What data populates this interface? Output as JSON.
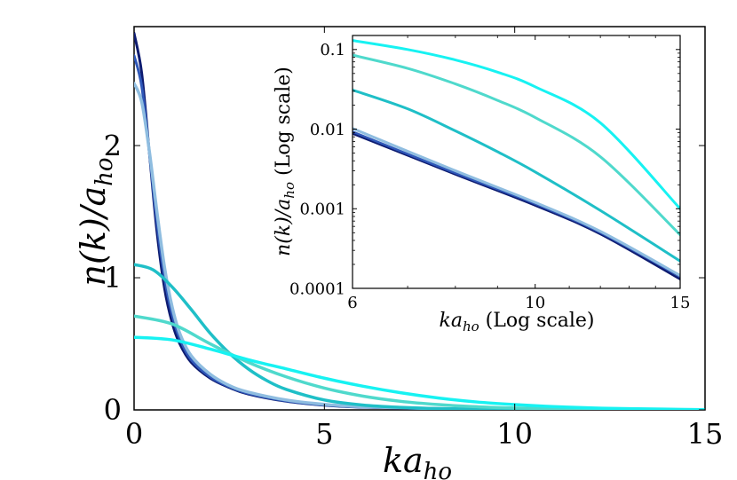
{
  "chart_data": [
    {
      "id": "main",
      "type": "line",
      "xlabel": "ka",
      "xlabel_sub": "ho",
      "ylabel_prefix": "n(k)/a",
      "ylabel_sub": "ho",
      "xlim": [
        0,
        15
      ],
      "ylim": [
        0,
        2.9
      ],
      "xticks": [
        0,
        5,
        10,
        15
      ],
      "xtick_labels": [
        "0",
        "5",
        "10",
        "15"
      ],
      "yticks": [
        0,
        1,
        2
      ],
      "ytick_labels": [
        "0",
        "1",
        "2"
      ],
      "grid": false,
      "series": [
        {
          "color": "#0d1b70",
          "width": 3,
          "x": [
            0,
            0.2,
            0.4,
            0.6,
            0.8,
            1.0,
            1.2,
            1.5,
            2.0,
            2.5,
            3.0,
            4.0,
            5.0,
            6.0,
            8.0,
            10.0,
            15.0
          ],
          "y": [
            2.85,
            2.55,
            1.95,
            1.35,
            0.92,
            0.66,
            0.5,
            0.36,
            0.24,
            0.17,
            0.12,
            0.065,
            0.035,
            0.02,
            0.008,
            0.003,
            0.0005
          ]
        },
        {
          "color": "#2e57b8",
          "width": 3,
          "x": [
            0,
            0.2,
            0.4,
            0.6,
            0.8,
            1.0,
            1.2,
            1.5,
            2.0,
            2.5,
            3.0,
            4.0,
            5.0,
            6.0,
            8.0,
            10.0,
            15.0
          ],
          "y": [
            2.68,
            2.45,
            1.95,
            1.42,
            1.0,
            0.72,
            0.54,
            0.38,
            0.25,
            0.175,
            0.125,
            0.068,
            0.037,
            0.021,
            0.009,
            0.0035,
            0.0006
          ]
        },
        {
          "color": "#8fbde0",
          "width": 3.5,
          "x": [
            0,
            0.2,
            0.4,
            0.6,
            0.8,
            1.0,
            1.2,
            1.5,
            2.0,
            2.5,
            3.0,
            4.0,
            5.0,
            6.0,
            8.0,
            10.0,
            15.0
          ],
          "y": [
            2.47,
            2.33,
            1.96,
            1.5,
            1.08,
            0.78,
            0.58,
            0.41,
            0.27,
            0.185,
            0.135,
            0.075,
            0.042,
            0.024,
            0.01,
            0.004,
            0.0007
          ]
        },
        {
          "color": "#1fbfc7",
          "width": 3.5,
          "x": [
            0,
            0.5,
            1.0,
            1.5,
            2.0,
            2.5,
            3.0,
            3.5,
            4.0,
            5.0,
            6.0,
            7.0,
            8.0,
            10.0,
            12.0,
            15.0
          ],
          "y": [
            1.1,
            1.06,
            0.93,
            0.76,
            0.58,
            0.43,
            0.31,
            0.22,
            0.155,
            0.075,
            0.037,
            0.019,
            0.01,
            0.003,
            0.001,
            0.0003
          ]
        },
        {
          "color": "#4fd9cc",
          "width": 3.5,
          "x": [
            0,
            1.0,
            2.0,
            3.0,
            4.0,
            5.0,
            6.0,
            7.0,
            8.0,
            9.0,
            10.0,
            12.0,
            15.0
          ],
          "y": [
            0.71,
            0.65,
            0.5,
            0.36,
            0.25,
            0.165,
            0.105,
            0.065,
            0.04,
            0.024,
            0.014,
            0.005,
            0.001
          ]
        },
        {
          "color": "#17f2f2",
          "width": 3.5,
          "x": [
            0,
            1.0,
            2.0,
            3.0,
            4.0,
            5.0,
            6.0,
            7.0,
            8.0,
            9.0,
            10.0,
            11.0,
            12.0,
            13.0,
            15.0
          ],
          "y": [
            0.55,
            0.53,
            0.46,
            0.38,
            0.31,
            0.24,
            0.18,
            0.13,
            0.09,
            0.06,
            0.04,
            0.025,
            0.015,
            0.009,
            0.002
          ]
        }
      ]
    },
    {
      "id": "inset",
      "type": "line",
      "xlabel": "ka",
      "xlabel_sub": "ho",
      "xlabel_suffix": " (Log scale)",
      "ylabel_prefix": "n(k)/a",
      "ylabel_sub": "ho",
      "ylabel_suffix": " (Log scale)",
      "xscale": "log",
      "yscale": "log",
      "xlim": [
        6,
        15
      ],
      "ylim": [
        0.0001,
        0.15
      ],
      "xticks": [
        6,
        10,
        15
      ],
      "xtick_labels": [
        "6",
        "10",
        "15"
      ],
      "yticks": [
        0.1,
        0.01,
        0.001,
        0.0001
      ],
      "ytick_labels": [
        "0.1",
        "0.01",
        "0.001",
        "0.0001"
      ],
      "grid": false,
      "series": [
        {
          "color": "#0d1b70",
          "width": 2.5,
          "x": [
            6,
            8,
            10,
            12,
            15
          ],
          "y": [
            0.0088,
            0.0027,
            0.0011,
            0.00048,
            0.00013
          ]
        },
        {
          "color": "#2e57b8",
          "width": 2.5,
          "x": [
            6,
            8,
            10,
            12,
            15
          ],
          "y": [
            0.0093,
            0.0028,
            0.00115,
            0.0005,
            0.00014
          ]
        },
        {
          "color": "#8fbde0",
          "width": 3,
          "x": [
            6,
            8,
            10,
            12,
            15
          ],
          "y": [
            0.0102,
            0.003,
            0.0012,
            0.00052,
            0.000145
          ]
        },
        {
          "color": "#1fbfc7",
          "width": 3,
          "x": [
            6,
            7,
            8,
            9,
            10,
            12,
            15
          ],
          "y": [
            0.031,
            0.018,
            0.0095,
            0.0052,
            0.0029,
            0.00095,
            0.00022
          ]
        },
        {
          "color": "#4fd9cc",
          "width": 3,
          "x": [
            6,
            7,
            8,
            9,
            10,
            12,
            15
          ],
          "y": [
            0.085,
            0.058,
            0.037,
            0.023,
            0.014,
            0.0045,
            0.00047
          ]
        },
        {
          "color": "#17f2f2",
          "width": 3,
          "x": [
            6,
            7,
            8,
            9,
            10,
            12,
            15
          ],
          "y": [
            0.13,
            0.1,
            0.074,
            0.052,
            0.034,
            0.012,
            0.001
          ]
        }
      ]
    }
  ]
}
